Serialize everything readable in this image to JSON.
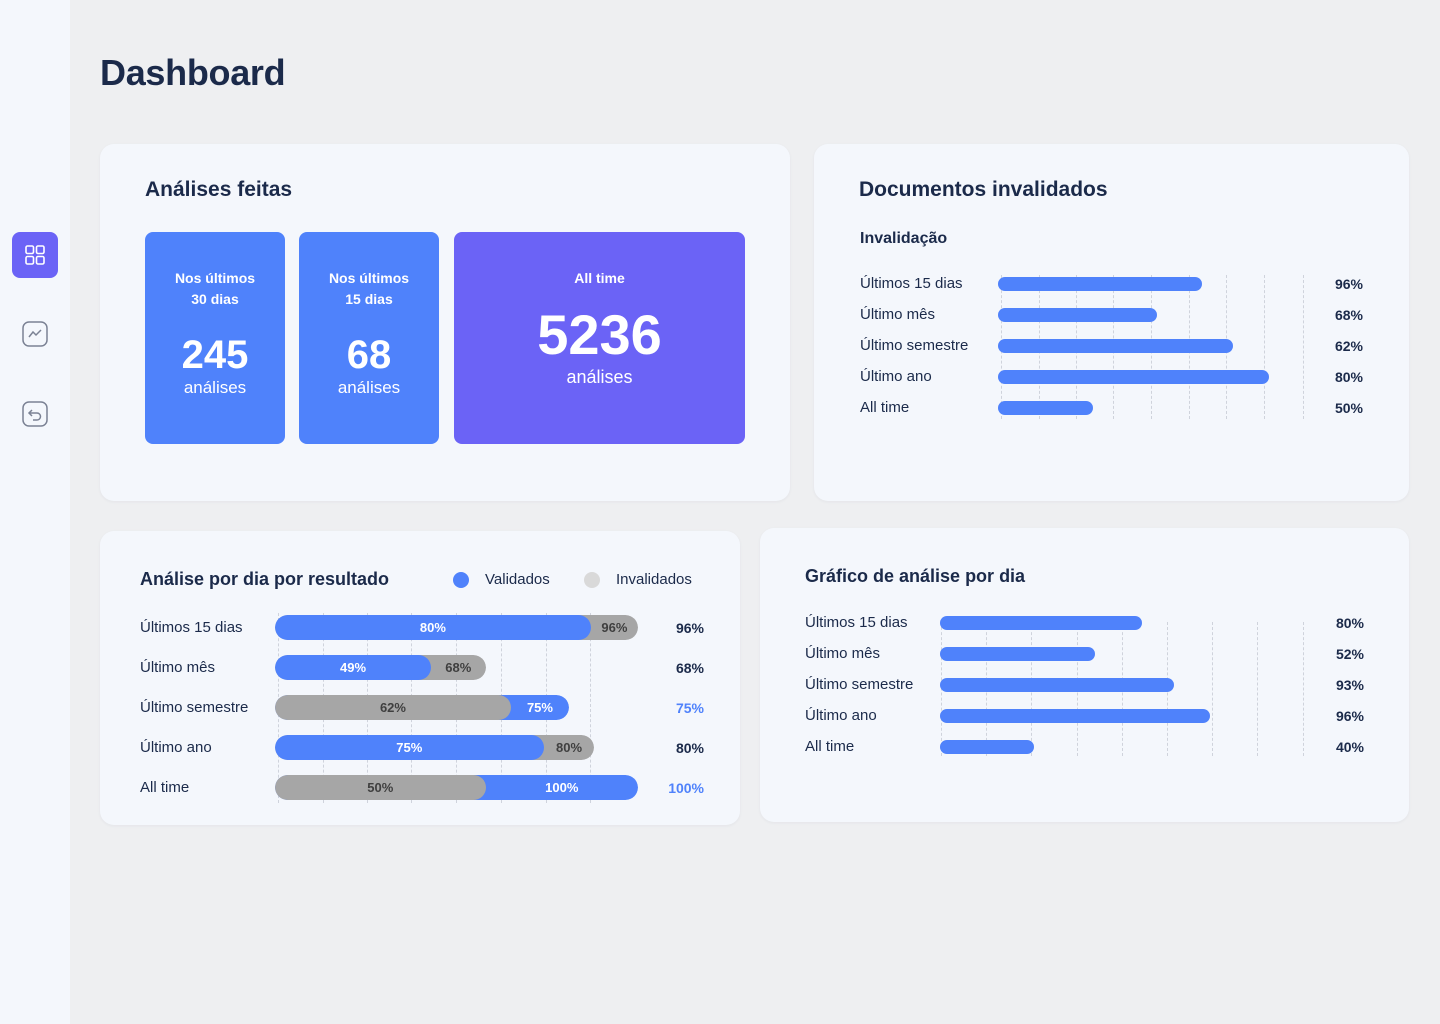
{
  "page": {
    "title": "Dashboard"
  },
  "sidebar": {
    "items": [
      {
        "name": "dashboard",
        "icon": "grid-icon",
        "active": true
      },
      {
        "name": "trends",
        "icon": "chart-icon",
        "active": false
      },
      {
        "name": "back",
        "icon": "undo-icon",
        "active": false
      }
    ]
  },
  "analises": {
    "title": "Análises feitas",
    "tiles": [
      {
        "label": "Nos últimos\n30 dias",
        "value": "245",
        "unit": "análises"
      },
      {
        "label": "Nos últimos\n15 dias",
        "value": "68",
        "unit": "análises"
      },
      {
        "label": "All time",
        "value": "5236",
        "unit": "análises"
      }
    ]
  },
  "documentos": {
    "title": "Documentos invalidados",
    "subtitle": "Invalidação",
    "rows": [
      {
        "label": "Últimos 15 dias",
        "value": "96%",
        "fill": 0.67
      },
      {
        "label": "Último mês",
        "value": "68%",
        "fill": 0.52
      },
      {
        "label": "Último semestre",
        "value": "62%",
        "fill": 0.77
      },
      {
        "label": "Último ano",
        "value": "80%",
        "fill": 0.89
      },
      {
        "label": "All time",
        "value": "50%",
        "fill": 0.31
      }
    ]
  },
  "resultado": {
    "title": "Análise por dia por resultado",
    "legend": [
      {
        "label": "Validados",
        "color": "#4f82fb"
      },
      {
        "label": "Invalidados",
        "color": "#d9d9d9"
      }
    ],
    "rows": [
      {
        "label": "Últimos 15 dias",
        "front": {
          "text": "80%",
          "color": "blue",
          "fill": 0.87
        },
        "back": {
          "text": "96%",
          "color": "gray",
          "fill": 1.0
        },
        "value": "96%",
        "accent": false
      },
      {
        "label": "Último mês",
        "front": {
          "text": "49%",
          "color": "blue",
          "fill": 0.43
        },
        "back": {
          "text": "68%",
          "color": "gray",
          "fill": 0.58
        },
        "value": "68%",
        "accent": false
      },
      {
        "label": "Último semestre",
        "front": {
          "text": "62%",
          "color": "gray",
          "fill": 0.65
        },
        "back": {
          "text": "75%",
          "color": "blue",
          "fill": 0.81
        },
        "value": "75%",
        "accent": true
      },
      {
        "label": "Último ano",
        "front": {
          "text": "75%",
          "color": "blue",
          "fill": 0.74
        },
        "back": {
          "text": "80%",
          "color": "gray",
          "fill": 0.88
        },
        "value": "80%",
        "accent": false
      },
      {
        "label": "All time",
        "front": {
          "text": "50%",
          "color": "gray",
          "fill": 0.58
        },
        "back": {
          "text": "100%",
          "color": "blue",
          "fill": 1.0
        },
        "value": "100%",
        "accent": true
      }
    ]
  },
  "grafico": {
    "title": "Gráfico de análise por dia",
    "rows": [
      {
        "label": "Últimos 15 dias",
        "value": "80%",
        "fill": 0.56
      },
      {
        "label": "Último mês",
        "value": "52%",
        "fill": 0.43
      },
      {
        "label": "Último semestre",
        "value": "93%",
        "fill": 0.65
      },
      {
        "label": "Último ano",
        "value": "96%",
        "fill": 0.75
      },
      {
        "label": "All time",
        "value": "40%",
        "fill": 0.26
      }
    ]
  },
  "colors": {
    "primary": "#4f82fb",
    "accent": "#6b63f6",
    "gray": "#a6a6a6"
  }
}
